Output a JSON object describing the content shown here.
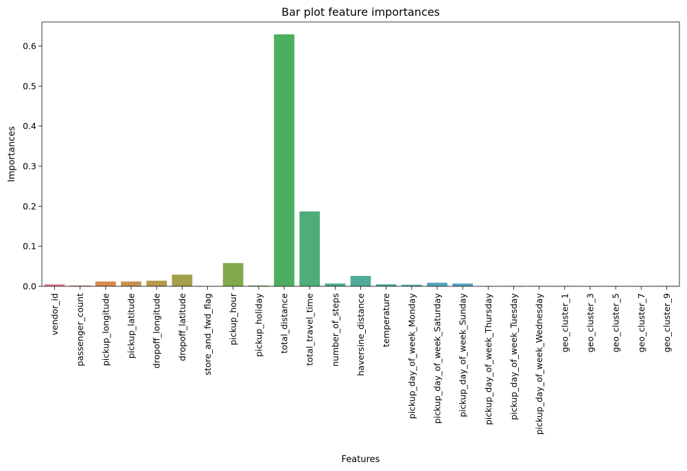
{
  "chart_data": {
    "type": "bar",
    "title": "Bar plot feature importances",
    "xlabel": "Features",
    "ylabel": "Importances",
    "ylim": [
      0,
      0.66
    ],
    "yticks": [
      0.0,
      0.1,
      0.2,
      0.3,
      0.4,
      0.5,
      0.6
    ],
    "ytick_labels": [
      "0.0",
      "0.1",
      "0.2",
      "0.3",
      "0.4",
      "0.5",
      "0.6"
    ],
    "grid": false,
    "legend": "none",
    "categories": [
      "vendor_id",
      "passenger_count",
      "pickup_longitude",
      "pickup_latitude",
      "dropoff_longitude",
      "dropoff_latitude",
      "store_and_fwd_flag",
      "pickup_hour",
      "pickup_holiday",
      "total_distance",
      "total_travel_time",
      "number_of_steps",
      "haversine_distance",
      "temperature",
      "pickup_day_of_week_Monday",
      "pickup_day_of_week_Saturday",
      "pickup_day_of_week_Sunday",
      "pickup_day_of_week_Thursday",
      "pickup_day_of_week_Tuesday",
      "pickup_day_of_week_Wednesday",
      "geo_cluster_1",
      "geo_cluster_3",
      "geo_cluster_5",
      "geo_cluster_7",
      "geo_cluster_9"
    ],
    "values": [
      0.005,
      0.002,
      0.012,
      0.012,
      0.014,
      0.029,
      0.0005,
      0.058,
      0.002,
      0.629,
      0.187,
      0.007,
      0.026,
      0.005,
      0.004,
      0.009,
      0.007,
      0.0005,
      0.001,
      0.001,
      0.001,
      0.0005,
      0.0005,
      0.0005,
      0.001
    ],
    "colors": [
      "#e58191",
      "#e1836b",
      "#d98a4e",
      "#c8924d",
      "#b59a4c",
      "#a39f4a",
      "#93a44a",
      "#82a94b",
      "#66ad4d",
      "#4caf5f",
      "#4ead79",
      "#4fac8b",
      "#4fab96",
      "#50aaa0",
      "#51a8aa",
      "#54a6b7",
      "#57a4c3",
      "#5ea0cf",
      "#7f9be2",
      "#a28ee2",
      "#bc85e5",
      "#d27be6",
      "#df76d4",
      "#e579b8",
      "#e67ca4"
    ]
  }
}
